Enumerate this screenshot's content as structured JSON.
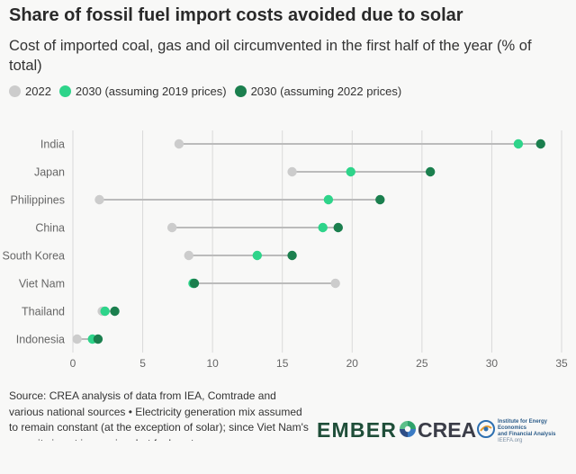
{
  "title": "Share of fossil fuel import costs avoided due to solar",
  "subtitle": "Cost of imported coal, gas and oil circumvented in the first half of the year (% of total)",
  "legend": [
    {
      "label": "2022",
      "color": "#cccccc"
    },
    {
      "label": "2030 (assuming 2019 prices)",
      "color": "#2ed48a"
    },
    {
      "label": "2030 (assuming 2022 prices)",
      "color": "#1b7f4e"
    }
  ],
  "colors": {
    "c2022": "#cccccc",
    "c2030_2019": "#2ed48a",
    "c2030_2022": "#1b7f4e",
    "connector": "#bbbbbb",
    "grid": "#d9d9d9",
    "axis_text": "#666666"
  },
  "chart_data": {
    "type": "dot-range",
    "title": "Share of fossil fuel import costs avoided due to solar",
    "subtitle": "Cost of imported coal, gas and oil circumvented in the first half of the year (% of total)",
    "xlabel": "",
    "ylabel": "",
    "xlim": [
      0,
      35
    ],
    "xticks": [
      0,
      5,
      10,
      15,
      20,
      25,
      30,
      35
    ],
    "grid": "vertical",
    "legend_position": "top-left",
    "categories": [
      "India",
      "Japan",
      "Philippines",
      "China",
      "South Korea",
      "Viet Nam",
      "Thailand",
      "Indonesia"
    ],
    "series": [
      {
        "name": "2022",
        "color": "#cccccc",
        "values": [
          7.6,
          15.7,
          1.9,
          7.1,
          8.3,
          18.8,
          2.1,
          0.3
        ]
      },
      {
        "name": "2030 (assuming 2019 prices)",
        "color": "#2ed48a",
        "values": [
          31.9,
          19.9,
          18.3,
          17.9,
          13.2,
          8.6,
          2.3,
          1.4
        ]
      },
      {
        "name": "2030 (assuming 2022 prices)",
        "color": "#1b7f4e",
        "values": [
          33.5,
          25.6,
          22.0,
          19.0,
          15.7,
          8.7,
          3.0,
          1.8
        ]
      }
    ]
  },
  "source": "Source: CREA analysis of data from IEA, Comtrade and various national sources • Electricity generation mix assumed to remain constant (at the exception of solar); since Viet Nam's capacity is not increasing, but fuel costs",
  "logos": {
    "ember": "EMBER",
    "crea": "CREA",
    "ieefa_line1": "Institute for Energy Economics",
    "ieefa_line2": "and Financial Analysis",
    "ieefa_url": "IEEFA.org"
  }
}
